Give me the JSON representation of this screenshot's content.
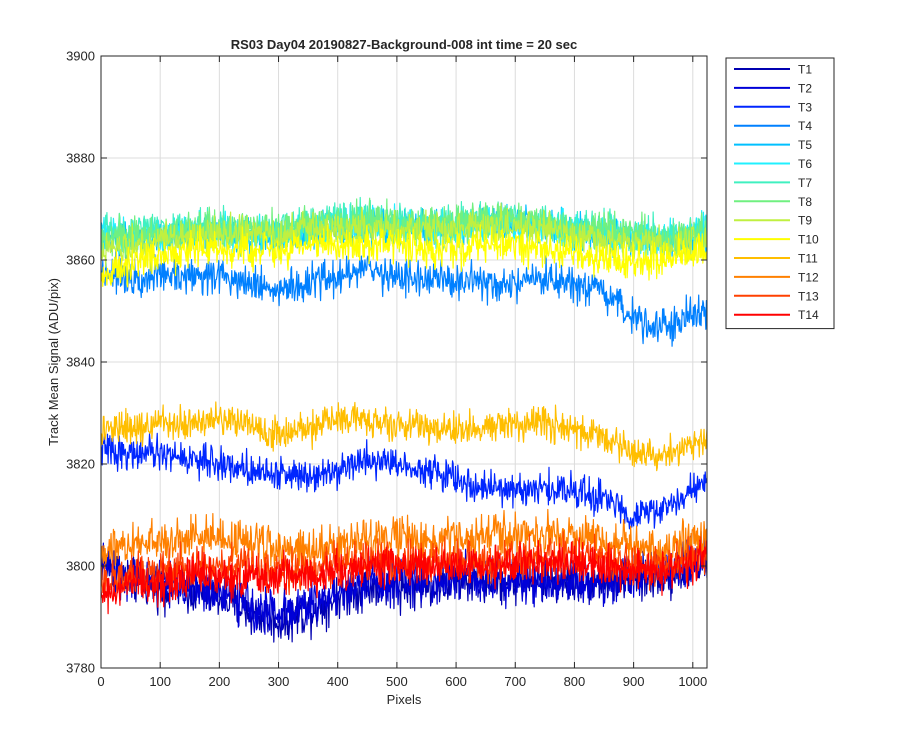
{
  "chart_data": {
    "type": "line",
    "title": "RS03 Day04 20190827-Background-008 int time = 20 sec",
    "xlabel": "Pixels",
    "ylabel": "Track Mean Signal (ADU/pix)",
    "xlim": [
      0,
      1024
    ],
    "ylim": [
      3780,
      3900
    ],
    "xticks": [
      0,
      100,
      200,
      300,
      400,
      500,
      600,
      700,
      800,
      900,
      1000
    ],
    "yticks": [
      3780,
      3800,
      3820,
      3840,
      3860,
      3880,
      3900
    ],
    "grid": true,
    "legend_position": "outside-top-right",
    "series": [
      {
        "name": "T1",
        "color": "#0000b0",
        "noise": 3.8,
        "x": [
          0,
          50,
          100,
          150,
          200,
          250,
          300,
          350,
          400,
          450,
          500,
          550,
          600,
          650,
          700,
          750,
          800,
          850,
          900,
          950,
          1000,
          1024
        ],
        "y": [
          3801,
          3797,
          3796,
          3795,
          3794,
          3791,
          3789,
          3791,
          3794,
          3796,
          3796,
          3796,
          3797,
          3797,
          3797,
          3797,
          3797,
          3797,
          3797,
          3798,
          3800,
          3801
        ]
      },
      {
        "name": "T2",
        "color": "#0000d8",
        "noise": 3.8,
        "x": [
          0,
          50,
          100,
          150,
          200,
          250,
          300,
          350,
          400,
          450,
          500,
          550,
          600,
          650,
          700,
          750,
          800,
          850,
          900,
          950,
          1000,
          1024
        ],
        "y": [
          3800,
          3798,
          3797,
          3796,
          3795,
          3792,
          3791,
          3792,
          3795,
          3797,
          3797,
          3797,
          3798,
          3798,
          3797,
          3797,
          3797,
          3797,
          3798,
          3799,
          3801,
          3802
        ]
      },
      {
        "name": "T3",
        "color": "#0026ff",
        "noise": 2.8,
        "x": [
          0,
          50,
          100,
          150,
          200,
          250,
          300,
          350,
          400,
          450,
          500,
          550,
          600,
          650,
          700,
          750,
          800,
          850,
          900,
          950,
          1000,
          1024
        ],
        "y": [
          3823,
          3822,
          3822,
          3821,
          3820,
          3819,
          3818,
          3818,
          3819,
          3821,
          3820,
          3819,
          3817,
          3815,
          3815,
          3815,
          3815,
          3813,
          3810,
          3811,
          3815,
          3816
        ]
      },
      {
        "name": "T4",
        "color": "#0080ff",
        "noise": 3.2,
        "x": [
          0,
          50,
          100,
          150,
          200,
          250,
          300,
          350,
          400,
          450,
          500,
          550,
          600,
          650,
          700,
          750,
          800,
          850,
          900,
          950,
          1000,
          1024
        ],
        "y": [
          3858,
          3857,
          3857,
          3857,
          3857,
          3856,
          3854,
          3855,
          3857,
          3858,
          3857,
          3856,
          3856,
          3855,
          3855,
          3856,
          3855,
          3853,
          3849,
          3847,
          3849,
          3850
        ]
      },
      {
        "name": "T5",
        "color": "#00c0ff",
        "noise": 3.0,
        "x": [
          0,
          50,
          100,
          150,
          200,
          250,
          300,
          350,
          400,
          450,
          500,
          550,
          600,
          650,
          700,
          750,
          800,
          850,
          900,
          950,
          1000,
          1024
        ],
        "y": [
          3864,
          3864,
          3864,
          3865,
          3865,
          3864,
          3864,
          3865,
          3866,
          3866,
          3866,
          3866,
          3866,
          3867,
          3867,
          3867,
          3866,
          3865,
          3864,
          3864,
          3864,
          3865
        ]
      },
      {
        "name": "T6",
        "color": "#20f0ff",
        "noise": 3.0,
        "x": [
          0,
          50,
          100,
          150,
          200,
          250,
          300,
          350,
          400,
          450,
          500,
          550,
          600,
          650,
          700,
          750,
          800,
          850,
          900,
          950,
          1000,
          1024
        ],
        "y": [
          3865,
          3865,
          3865,
          3866,
          3866,
          3865,
          3865,
          3866,
          3867,
          3867,
          3867,
          3866,
          3866,
          3867,
          3867,
          3867,
          3866,
          3865,
          3865,
          3864,
          3865,
          3866
        ]
      },
      {
        "name": "T7",
        "color": "#40f0c0",
        "noise": 3.0,
        "x": [
          0,
          50,
          100,
          150,
          200,
          250,
          300,
          350,
          400,
          450,
          500,
          550,
          600,
          650,
          700,
          750,
          800,
          850,
          900,
          950,
          1000,
          1024
        ],
        "y": [
          3865,
          3866,
          3866,
          3866,
          3866,
          3866,
          3866,
          3867,
          3868,
          3868,
          3867,
          3867,
          3867,
          3868,
          3868,
          3867,
          3866,
          3866,
          3865,
          3865,
          3865,
          3866
        ]
      },
      {
        "name": "T8",
        "color": "#70f080",
        "noise": 3.0,
        "x": [
          0,
          50,
          100,
          150,
          200,
          250,
          300,
          350,
          400,
          450,
          500,
          550,
          600,
          650,
          700,
          750,
          800,
          850,
          900,
          950,
          1000,
          1024
        ],
        "y": [
          3864,
          3865,
          3865,
          3866,
          3866,
          3866,
          3866,
          3867,
          3868,
          3868,
          3867,
          3867,
          3867,
          3868,
          3868,
          3867,
          3866,
          3866,
          3865,
          3864,
          3865,
          3866
        ]
      },
      {
        "name": "T9",
        "color": "#c0f040",
        "noise": 3.0,
        "x": [
          0,
          50,
          100,
          150,
          200,
          250,
          300,
          350,
          400,
          450,
          500,
          550,
          600,
          650,
          700,
          750,
          800,
          850,
          900,
          950,
          1000,
          1024
        ],
        "y": [
          3862,
          3863,
          3864,
          3865,
          3865,
          3865,
          3865,
          3866,
          3866,
          3866,
          3866,
          3866,
          3866,
          3867,
          3867,
          3866,
          3865,
          3864,
          3863,
          3863,
          3864,
          3864
        ]
      },
      {
        "name": "T10",
        "color": "#ffff00",
        "noise": 3.0,
        "x": [
          0,
          50,
          100,
          150,
          200,
          250,
          300,
          350,
          400,
          450,
          500,
          550,
          600,
          650,
          700,
          750,
          800,
          850,
          900,
          950,
          1000,
          1024
        ],
        "y": [
          3856,
          3859,
          3861,
          3862,
          3862,
          3862,
          3862,
          3863,
          3863,
          3863,
          3863,
          3862,
          3862,
          3863,
          3863,
          3862,
          3861,
          3860,
          3860,
          3860,
          3861,
          3862
        ]
      },
      {
        "name": "T11",
        "color": "#ffbe00",
        "noise": 2.8,
        "x": [
          0,
          50,
          100,
          150,
          200,
          250,
          300,
          350,
          400,
          450,
          500,
          550,
          600,
          650,
          700,
          750,
          800,
          850,
          900,
          950,
          1000,
          1024
        ],
        "y": [
          3826,
          3827,
          3828,
          3828,
          3829,
          3828,
          3826,
          3827,
          3829,
          3829,
          3828,
          3827,
          3827,
          3827,
          3828,
          3828,
          3827,
          3825,
          3822,
          3822,
          3824,
          3825
        ]
      },
      {
        "name": "T12",
        "color": "#ff8000",
        "noise": 3.4,
        "x": [
          0,
          50,
          100,
          150,
          200,
          250,
          300,
          350,
          400,
          450,
          500,
          550,
          600,
          650,
          700,
          750,
          800,
          850,
          900,
          950,
          1000,
          1024
        ],
        "y": [
          3803,
          3804,
          3805,
          3806,
          3806,
          3805,
          3803,
          3803,
          3804,
          3805,
          3805,
          3805,
          3805,
          3806,
          3806,
          3806,
          3806,
          3805,
          3804,
          3803,
          3805,
          3806
        ]
      },
      {
        "name": "T13",
        "color": "#ff4000",
        "noise": 3.4,
        "x": [
          0,
          50,
          100,
          150,
          200,
          250,
          300,
          350,
          400,
          450,
          500,
          550,
          600,
          650,
          700,
          750,
          800,
          850,
          900,
          950,
          1000,
          1024
        ],
        "y": [
          3796,
          3798,
          3799,
          3800,
          3800,
          3800,
          3799,
          3799,
          3800,
          3801,
          3801,
          3801,
          3801,
          3801,
          3802,
          3802,
          3802,
          3801,
          3800,
          3800,
          3802,
          3803
        ]
      },
      {
        "name": "T14",
        "color": "#ff0000",
        "noise": 3.4,
        "x": [
          0,
          50,
          100,
          150,
          200,
          250,
          300,
          350,
          400,
          450,
          500,
          550,
          600,
          650,
          700,
          750,
          800,
          850,
          900,
          950,
          1000,
          1024
        ],
        "y": [
          3794,
          3796,
          3797,
          3798,
          3798,
          3798,
          3798,
          3798,
          3799,
          3800,
          3800,
          3800,
          3800,
          3800,
          3801,
          3801,
          3801,
          3800,
          3799,
          3799,
          3801,
          3802
        ]
      }
    ]
  }
}
